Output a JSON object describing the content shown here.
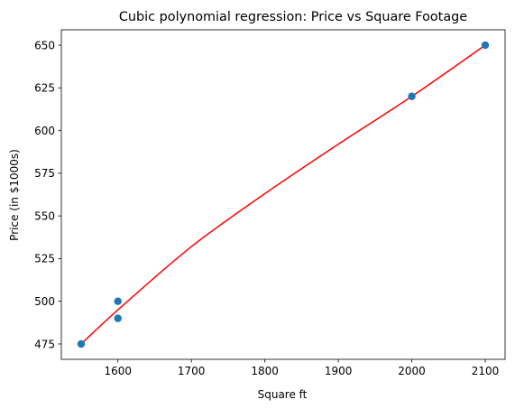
{
  "chart_data": {
    "type": "scatter",
    "title": "Cubic polynomial regression: Price vs Square Footage",
    "xlabel": "Square ft",
    "ylabel": "Price (in $1000s)",
    "xlim": [
      1523,
      2127
    ],
    "ylim": [
      466,
      659
    ],
    "xticks": [
      1600,
      1700,
      1800,
      1900,
      2000,
      2100
    ],
    "yticks": [
      475,
      500,
      525,
      550,
      575,
      600,
      625,
      650
    ],
    "grid": false,
    "series": [
      {
        "kind": "points",
        "color": "#1f77b4",
        "x": [
          1550,
          1600,
          1600,
          2000,
          2100
        ],
        "y": [
          475,
          500,
          490,
          620,
          650
        ]
      },
      {
        "kind": "fit-line",
        "color": "#ff0000",
        "x": [
          1550,
          1600,
          1700,
          1800,
          1900,
          2000,
          2100
        ],
        "y": [
          475,
          495,
          532,
          563,
          592,
          620,
          650
        ]
      }
    ]
  }
}
